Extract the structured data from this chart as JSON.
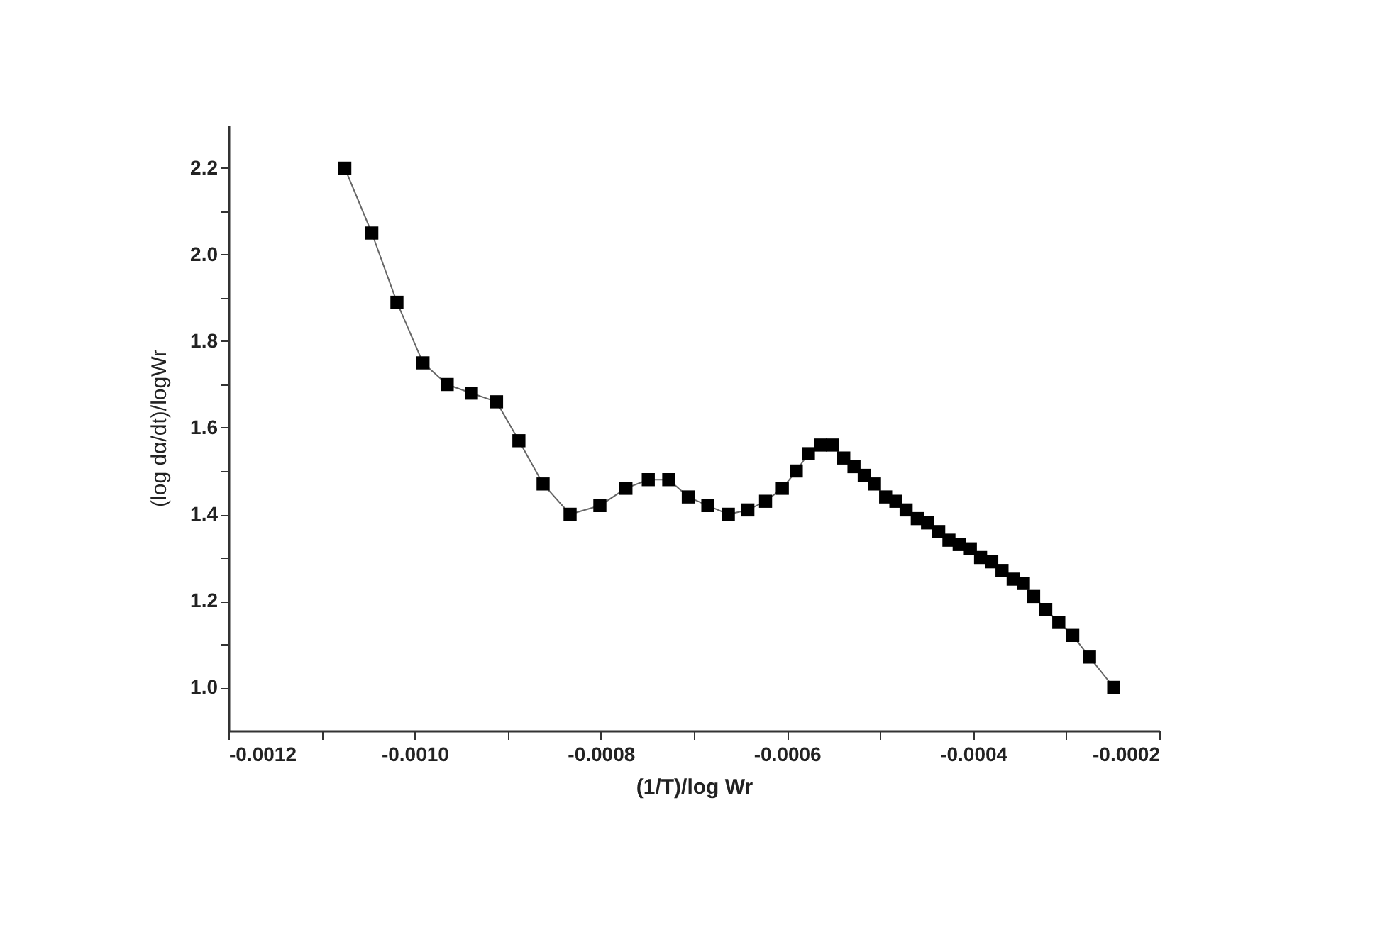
{
  "chart_data": {
    "type": "line",
    "xlabel": "(1/T)/log Wr",
    "ylabel": "(log dα/dt)/logWr",
    "x": [
      -0.001075,
      -0.001046,
      -0.001019,
      -0.000991,
      -0.000965,
      -0.000939,
      -0.000912,
      -0.000888,
      -0.000862,
      -0.000833,
      -0.000801,
      -0.000773,
      -0.000749,
      -0.000727,
      -0.000706,
      -0.000685,
      -0.000663,
      -0.000642,
      -0.000623,
      -0.000605,
      -0.00059,
      -0.000577,
      -0.000564,
      -0.000551,
      -0.000539,
      -0.000528,
      -0.000517,
      -0.000506,
      -0.000494,
      -0.000483,
      -0.000472,
      -0.00046,
      -0.000449,
      -0.000437,
      -0.000426,
      -0.000415,
      -0.000403,
      -0.000392,
      -0.00038,
      -0.000369,
      -0.000357,
      -0.000346,
      -0.000335,
      -0.000322,
      -0.000308,
      -0.000293,
      -0.000275,
      -0.000249
    ],
    "series": [
      {
        "color": "#000000",
        "values": [
          2.2,
          2.05,
          1.89,
          1.75,
          1.7,
          1.68,
          1.66,
          1.57,
          1.47,
          1.4,
          1.42,
          1.46,
          1.48,
          1.48,
          1.44,
          1.42,
          1.4,
          1.41,
          1.43,
          1.46,
          1.5,
          1.54,
          1.56,
          1.56,
          1.53,
          1.51,
          1.49,
          1.47,
          1.44,
          1.43,
          1.41,
          1.39,
          1.38,
          1.36,
          1.34,
          1.33,
          1.32,
          1.3,
          1.29,
          1.27,
          1.25,
          1.24,
          1.21,
          1.18,
          1.15,
          1.12,
          1.07,
          1.0
        ]
      }
    ],
    "xlim": [
      -0.0012,
      -0.0002
    ],
    "xticks": [
      -0.0012,
      {
        "value": -0.0011,
        "label": null
      },
      {
        "value": -0.001,
        "label": "-0.0010"
      },
      {
        "value": -0.0009,
        "label": null
      },
      -0.0008,
      {
        "value": -0.0007,
        "label": null
      },
      -0.0006,
      {
        "value": -0.0005,
        "label": null
      },
      -0.0004,
      {
        "value": -0.0003,
        "label": null
      },
      -0.0002
    ],
    "ylim": [
      0.9,
      2.3
    ],
    "yticks": [
      {
        "value": 1,
        "label": "1.0"
      },
      {
        "value": 1.1,
        "label": null
      },
      1.2,
      {
        "value": 1.3,
        "label": null
      },
      1.4,
      {
        "value": 1.5,
        "label": null
      },
      1.6,
      {
        "value": 1.7,
        "label": null
      },
      1.8,
      {
        "value": 1.9,
        "label": null
      },
      {
        "value": 2,
        "label": "2.0"
      },
      {
        "value": 2.1,
        "label": null
      },
      2.2
    ],
    "marker": "square",
    "line_style": "solid",
    "legend": false,
    "grid": false
  }
}
